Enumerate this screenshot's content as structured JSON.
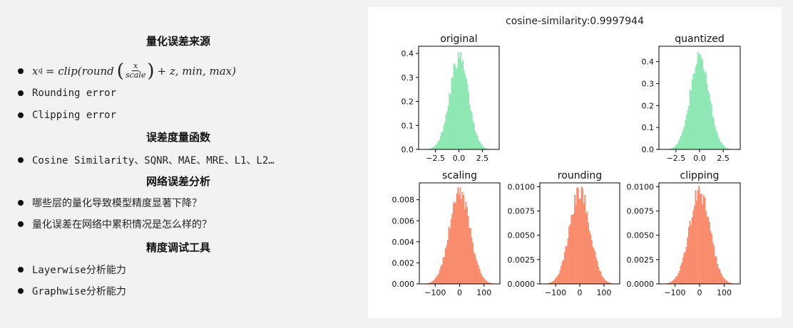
{
  "slide": {
    "sections": [
      {
        "heading": "量化误差来源",
        "items": [
          {
            "type": "formula",
            "lhs": "x",
            "sub": "q",
            "pre": "= clip(round",
            "frac_num": "x",
            "frac_den": "scale",
            "post": "+ z, min, max)"
          },
          {
            "type": "text",
            "text": "Rounding error"
          },
          {
            "type": "text",
            "text": "Clipping error"
          }
        ]
      },
      {
        "heading": "误差度量函数",
        "items": [
          {
            "type": "text",
            "text": "Cosine Similarity、SQNR、MAE、MRE、L1、L2…"
          }
        ]
      },
      {
        "heading": "网络误差分析",
        "items": [
          {
            "type": "text",
            "text": "哪些层的量化导致模型精度显著下降？"
          },
          {
            "type": "text",
            "text": "量化误差在网络中累积情况是怎么样的？"
          }
        ]
      },
      {
        "heading": "精度调试工具",
        "items": [
          {
            "type": "text",
            "text": "Layerwise分析能力"
          },
          {
            "type": "text",
            "text": "Graphwise分析能力"
          }
        ]
      }
    ]
  },
  "figure": {
    "suptitle": "cosine-similarity:0.9997944",
    "colors": {
      "top": "#8ee8b4",
      "bottom": "#fa8c6e"
    },
    "chart_data": [
      {
        "type": "histogram",
        "title": "original",
        "xlim": [
          -4.3,
          4.3
        ],
        "ylim": [
          0,
          0.43
        ],
        "xticks": [
          -2.5,
          0,
          2.5
        ],
        "xtick_labels": [
          "−2.5",
          "0.0",
          "2.5"
        ],
        "yticks": [
          0,
          0.1,
          0.2,
          0.3,
          0.4
        ],
        "ytick_labels": [
          "0.0",
          "0.1",
          "0.2",
          "0.3",
          "0.4"
        ],
        "dist": {
          "mean": 0,
          "sd": 1,
          "range": [
            -3.6,
            3.6
          ],
          "peak": 0.405
        }
      },
      {
        "type": "histogram",
        "title": "quantized",
        "xlim": [
          -4.3,
          4.3
        ],
        "ylim": [
          0,
          0.47
        ],
        "xticks": [
          -2.5,
          0,
          2.5
        ],
        "xtick_labels": [
          "−2.5",
          "0.0",
          "2.5"
        ],
        "yticks": [
          0,
          0.1,
          0.2,
          0.3,
          0.4
        ],
        "ytick_labels": [
          "0.0",
          "0.1",
          "0.2",
          "0.3",
          "0.4"
        ],
        "dist": {
          "mean": 0,
          "sd": 1,
          "range": [
            -3.6,
            3.6
          ],
          "peak": 0.445
        }
      },
      {
        "type": "histogram",
        "title": "scaling",
        "xlim": [
          -165,
          165
        ],
        "ylim": [
          0,
          0.0096
        ],
        "xticks": [
          -100,
          0,
          100
        ],
        "xtick_labels": [
          "−100",
          "0",
          "100"
        ],
        "yticks": [
          0,
          0.002,
          0.004,
          0.006,
          0.008
        ],
        "ytick_labels": [
          "0.000",
          "0.002",
          "0.004",
          "0.006",
          "0.008"
        ],
        "dist": {
          "mean": 0,
          "sd": 42,
          "range": [
            -140,
            140
          ],
          "peak": 0.0092
        }
      },
      {
        "type": "histogram",
        "title": "rounding",
        "xlim": [
          -165,
          165
        ],
        "ylim": [
          0,
          0.0104
        ],
        "xticks": [
          -100,
          0,
          100
        ],
        "xtick_labels": [
          "−100",
          "0",
          "100"
        ],
        "yticks": [
          0,
          0.0025,
          0.005,
          0.0075,
          0.01
        ],
        "ytick_labels": [
          "0.0000",
          "0.0025",
          "0.0050",
          "0.0075",
          "0.0100"
        ],
        "dist": {
          "mean": 0,
          "sd": 42,
          "range": [
            -140,
            140
          ],
          "peak": 0.0101
        }
      },
      {
        "type": "histogram",
        "title": "clipping",
        "xlim": [
          -165,
          165
        ],
        "ylim": [
          0,
          0.0104
        ],
        "xticks": [
          -100,
          0,
          100
        ],
        "xtick_labels": [
          "−100",
          "0",
          "100"
        ],
        "yticks": [
          0,
          0.0025,
          0.005,
          0.0075,
          0.01
        ],
        "ytick_labels": [
          "0.0000",
          "0.0025",
          "0.0050",
          "0.0075",
          "0.0100"
        ],
        "dist": {
          "mean": 0,
          "sd": 42,
          "range": [
            -140,
            140
          ],
          "peak": 0.0101
        }
      }
    ]
  }
}
